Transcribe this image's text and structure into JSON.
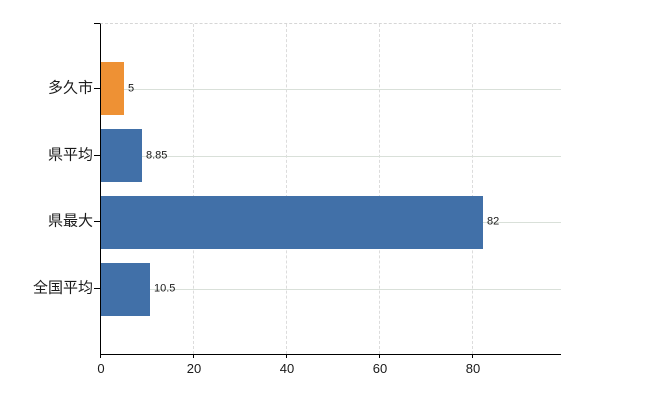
{
  "chart_data": {
    "type": "bar",
    "orientation": "horizontal",
    "title": "",
    "xlabel": "",
    "ylabel": "",
    "categories": [
      "多久市",
      "県平均",
      "県最大",
      "全国平均"
    ],
    "values": [
      5,
      8.85,
      82,
      10.5
    ],
    "value_labels": [
      "5",
      "8.85",
      "82",
      "10.5"
    ],
    "bar_colors": [
      "#ee9134",
      "#4170a8",
      "#4170a8",
      "#4170a8"
    ],
    "x_ticks": [
      0,
      20,
      40,
      60,
      80
    ],
    "x_tick_labels": [
      "0",
      "20",
      "40",
      "60",
      "80"
    ],
    "xlim": [
      0,
      98.8
    ],
    "legend_position": "none",
    "grid": {
      "vertical": "dashed",
      "horizontal": "solid"
    },
    "colors": {
      "bar_orange": "#ee9134",
      "bar_blue": "#4170a8",
      "axis": "#000000",
      "grid_vertical": "#dcdcdc",
      "grid_horizontal": "#d9e0d9",
      "plot_top_border": "#d6d6d6",
      "background": "#ffffff",
      "text": "#1a1a1a"
    }
  }
}
